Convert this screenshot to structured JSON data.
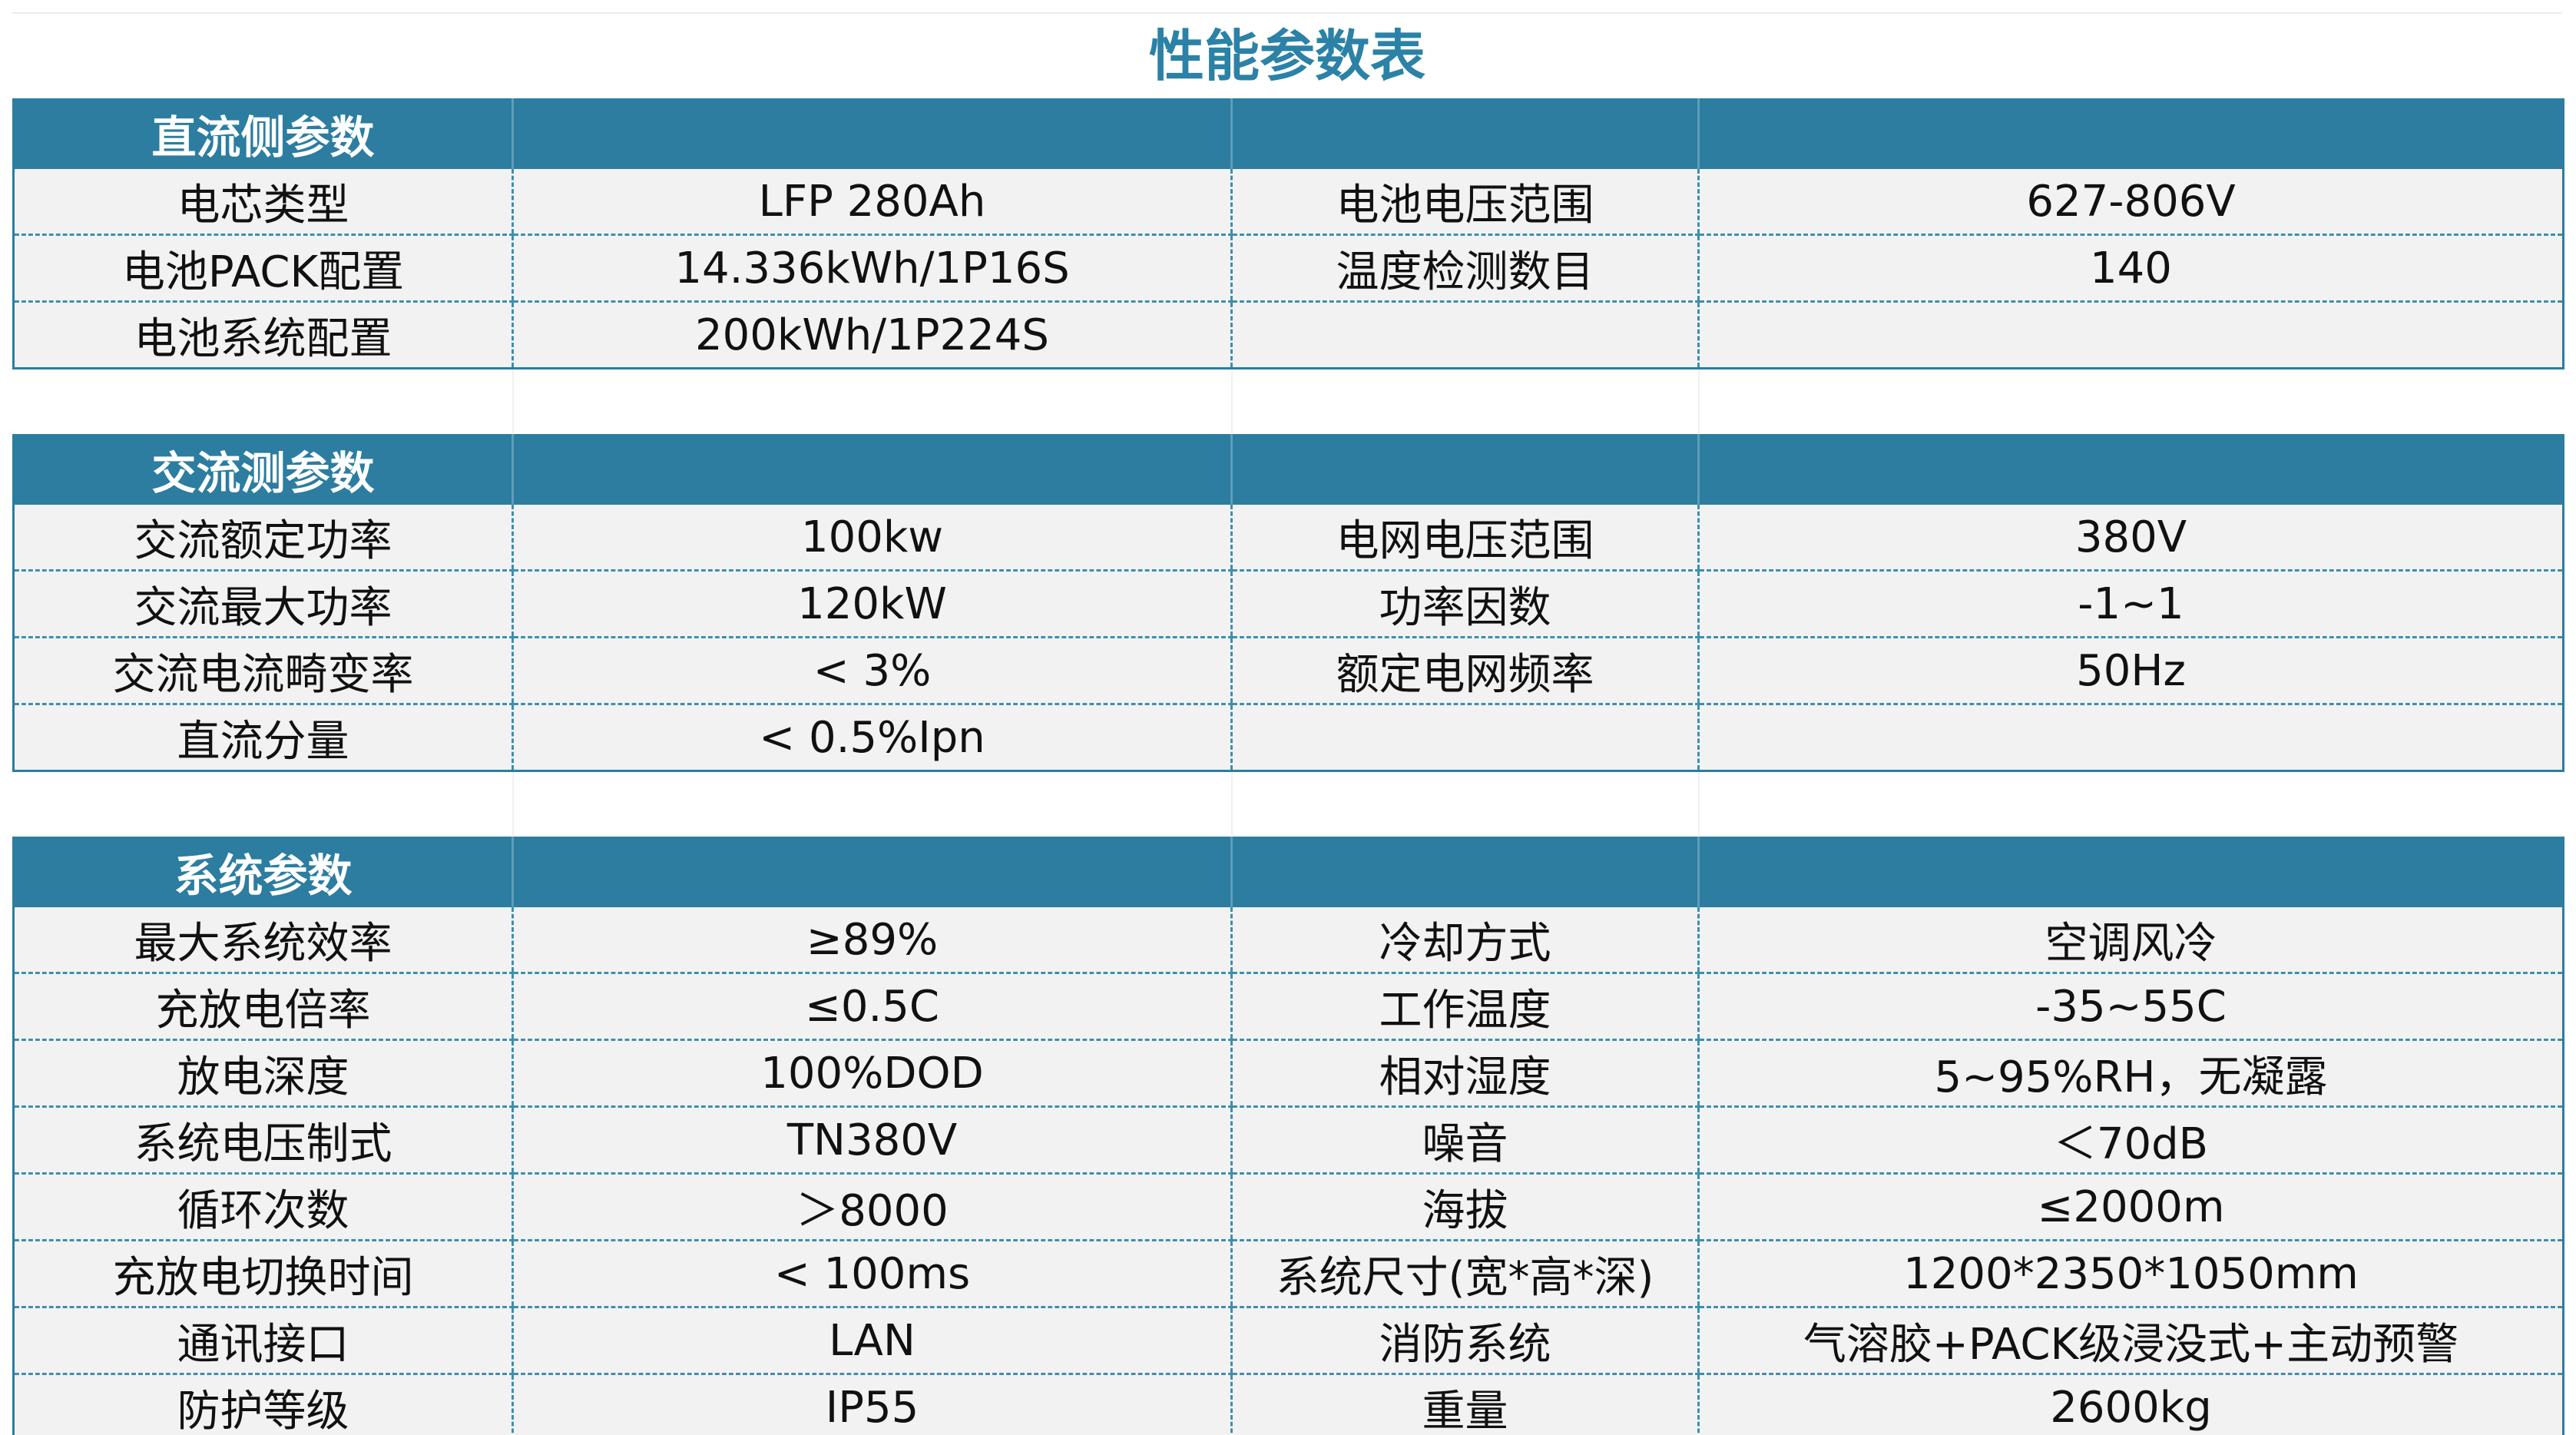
{
  "title": "性能参数表",
  "sections": [
    {
      "header": "直流侧参数",
      "rows": [
        [
          "电芯类型",
          "LFP 280Ah",
          "电池电压范围",
          "627-806V"
        ],
        [
          "电池PACK配置",
          "14.336kWh/1P16S",
          "温度检测数目",
          "140"
        ],
        [
          "电池系统配置",
          "200kWh/1P224S",
          "",
          ""
        ]
      ]
    },
    {
      "header": "交流测参数",
      "rows": [
        [
          "交流额定功率",
          "100kw",
          "电网电压范围",
          "380V"
        ],
        [
          "交流最大功率",
          "120kW",
          "功率因数",
          "-1~1"
        ],
        [
          "交流电流畸变率",
          "< 3%",
          "额定电网频率",
          "50Hz"
        ],
        [
          "直流分量",
          "< 0.5%Ipn",
          "",
          ""
        ]
      ]
    },
    {
      "header": "系统参数",
      "rows": [
        [
          "最大系统效率",
          "≥89%",
          "冷却方式",
          "空调风冷"
        ],
        [
          "充放电倍率",
          "≤0.5C",
          "工作温度",
          "-35~55C"
        ],
        [
          "放电深度",
          "100%DOD",
          "相对湿度",
          "5~95%RH，无凝露"
        ],
        [
          "系统电压制式",
          "TN380V",
          "噪音",
          "＜70dB"
        ],
        [
          "循环次数",
          "＞8000",
          "海拔",
          "≤2000m"
        ],
        [
          "充放电切换时间",
          "< 100ms",
          "系统尺寸(宽*高*深)",
          "1200*2350*1050mm"
        ],
        [
          "通讯接口",
          "LAN",
          "消防系统",
          "气溶胶+PACK级浸没式+主动预警"
        ],
        [
          "防护等级",
          "IP55",
          "重量",
          "2600kg"
        ]
      ]
    }
  ]
}
